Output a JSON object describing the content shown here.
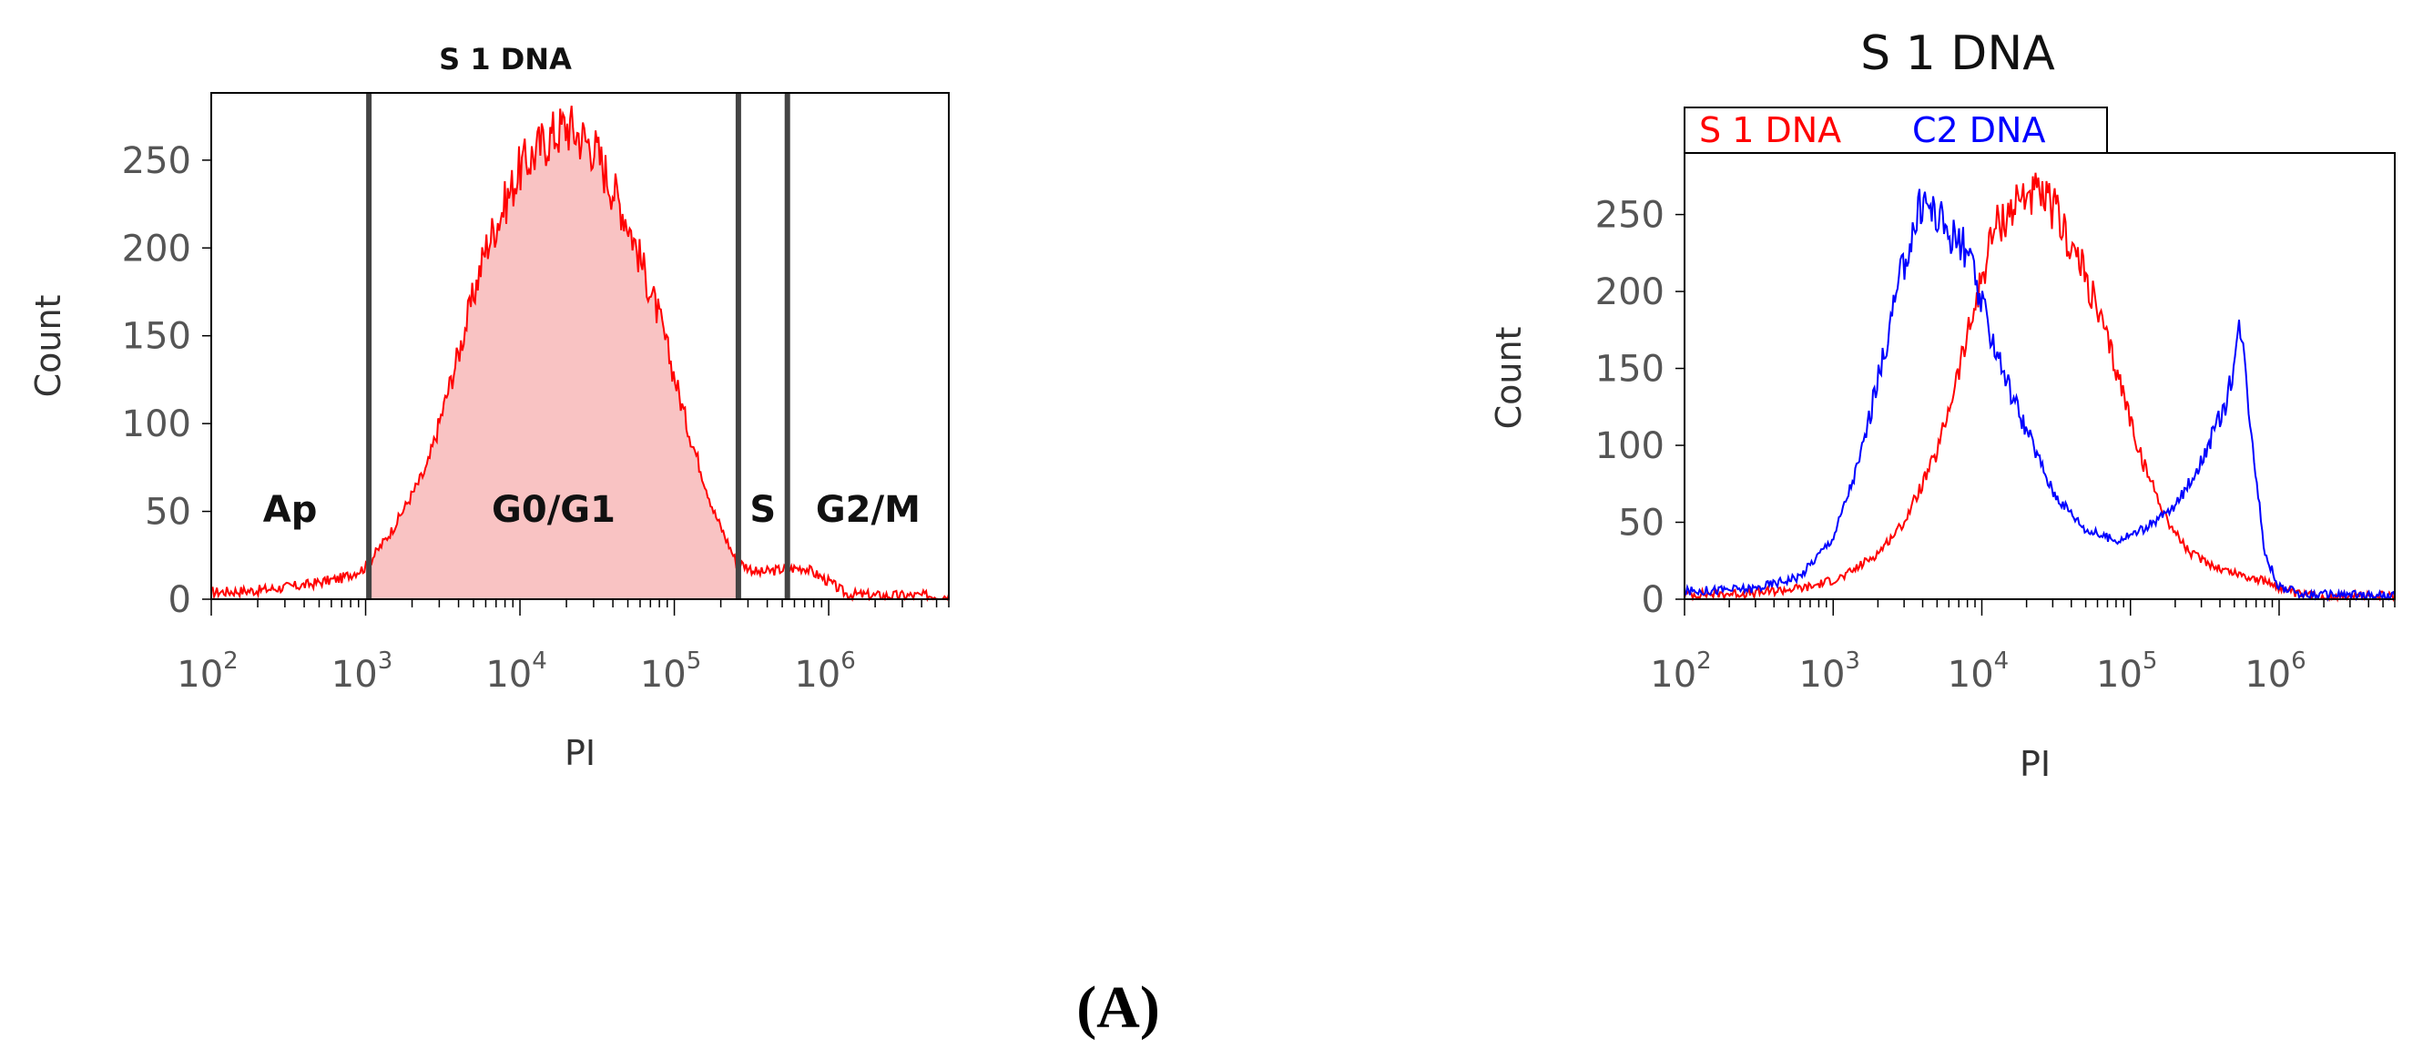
{
  "figure_label": "(A)",
  "colors": {
    "s1": "#ff0000",
    "c2": "#0000ff",
    "fill": "#f9c3c3",
    "gate": "#444444"
  },
  "chart_data": [
    {
      "type": "area",
      "title": "S 1 DNA",
      "xlabel": "PI",
      "ylabel": "Count",
      "xscale": "log",
      "xlim": [
        100,
        6000000
      ],
      "ylim": [
        0,
        280
      ],
      "x_ticks": [
        {
          "base": "10",
          "exp": "2",
          "value": 100
        },
        {
          "base": "10",
          "exp": "3",
          "value": 1000
        },
        {
          "base": "10",
          "exp": "4",
          "value": 10000
        },
        {
          "base": "10",
          "exp": "5",
          "value": 100000
        },
        {
          "base": "10",
          "exp": "6",
          "value": 1000000
        }
      ],
      "y_ticks": [
        0,
        50,
        100,
        150,
        200,
        250
      ],
      "gates": [
        {
          "label": "Ap",
          "x_start": 100,
          "x_end": 1050
        },
        {
          "label": "G0/G1",
          "x_start": 1050,
          "x_end": 260000
        },
        {
          "label": "S",
          "x_start": 260000,
          "x_end": 540000
        },
        {
          "label": "G2/M",
          "x_start": 540000,
          "x_end": 6000000
        }
      ],
      "gate_lines": [
        1050,
        260000,
        540000
      ],
      "series": [
        {
          "color": "#ff0000",
          "points": [
            [
              100,
              4
            ],
            [
              200,
              5
            ],
            [
              400,
              8
            ],
            [
              700,
              12
            ],
            [
              1000,
              18
            ],
            [
              1500,
              40
            ],
            [
              2500,
              75
            ],
            [
              4000,
              140
            ],
            [
              6000,
              200
            ],
            [
              10000,
              245
            ],
            [
              15000,
              262
            ],
            [
              20000,
              270
            ],
            [
              30000,
              258
            ],
            [
              50000,
              215
            ],
            [
              80000,
              160
            ],
            [
              120000,
              100
            ],
            [
              180000,
              50
            ],
            [
              250000,
              22
            ],
            [
              350000,
              15
            ],
            [
              500000,
              17
            ],
            [
              700000,
              18
            ],
            [
              1000000,
              10
            ],
            [
              1300000,
              3
            ],
            [
              2000000,
              2
            ],
            [
              6000000,
              2
            ]
          ]
        }
      ]
    },
    {
      "type": "line",
      "title": "S 1 DNA",
      "xlabel": "PI",
      "ylabel": "Count",
      "xscale": "log",
      "xlim": [
        100,
        6000000
      ],
      "ylim": [
        0,
        290
      ],
      "x_ticks": [
        {
          "base": "10",
          "exp": "2",
          "value": 100
        },
        {
          "base": "10",
          "exp": "3",
          "value": 1000
        },
        {
          "base": "10",
          "exp": "4",
          "value": 10000
        },
        {
          "base": "10",
          "exp": "5",
          "value": 100000
        },
        {
          "base": "10",
          "exp": "6",
          "value": 1000000
        }
      ],
      "y_ticks": [
        0,
        50,
        100,
        150,
        200,
        250
      ],
      "legend": [
        "S 1 DNA",
        "C2 DNA"
      ],
      "series": [
        {
          "name": "S 1 DNA",
          "color": "#ff0000",
          "points": [
            [
              100,
              3
            ],
            [
              300,
              4
            ],
            [
              700,
              8
            ],
            [
              1200,
              15
            ],
            [
              2000,
              30
            ],
            [
              3000,
              50
            ],
            [
              5000,
              95
            ],
            [
              8000,
              170
            ],
            [
              12000,
              240
            ],
            [
              20000,
              265
            ],
            [
              30000,
              255
            ],
            [
              50000,
              210
            ],
            [
              80000,
              150
            ],
            [
              120000,
              90
            ],
            [
              180000,
              50
            ],
            [
              250000,
              30
            ],
            [
              400000,
              20
            ],
            [
              600000,
              15
            ],
            [
              900000,
              10
            ],
            [
              1300000,
              3
            ],
            [
              2000000,
              2
            ],
            [
              6000000,
              2
            ]
          ]
        },
        {
          "name": "C2 DNA",
          "color": "#0000ff",
          "points": [
            [
              100,
              5
            ],
            [
              300,
              7
            ],
            [
              600,
              15
            ],
            [
              1000,
              40
            ],
            [
              1500,
              90
            ],
            [
              2200,
              160
            ],
            [
              3000,
              220
            ],
            [
              4000,
              260
            ],
            [
              6000,
              240
            ],
            [
              8000,
              225
            ],
            [
              10000,
              190
            ],
            [
              15000,
              140
            ],
            [
              20000,
              110
            ],
            [
              30000,
              70
            ],
            [
              50000,
              45
            ],
            [
              80000,
              38
            ],
            [
              120000,
              45
            ],
            [
              200000,
              60
            ],
            [
              300000,
              90
            ],
            [
              450000,
              130
            ],
            [
              550000,
              180
            ],
            [
              650000,
              110
            ],
            [
              800000,
              30
            ],
            [
              1000000,
              8
            ],
            [
              1500000,
              3
            ],
            [
              6000000,
              2
            ]
          ]
        }
      ]
    }
  ]
}
